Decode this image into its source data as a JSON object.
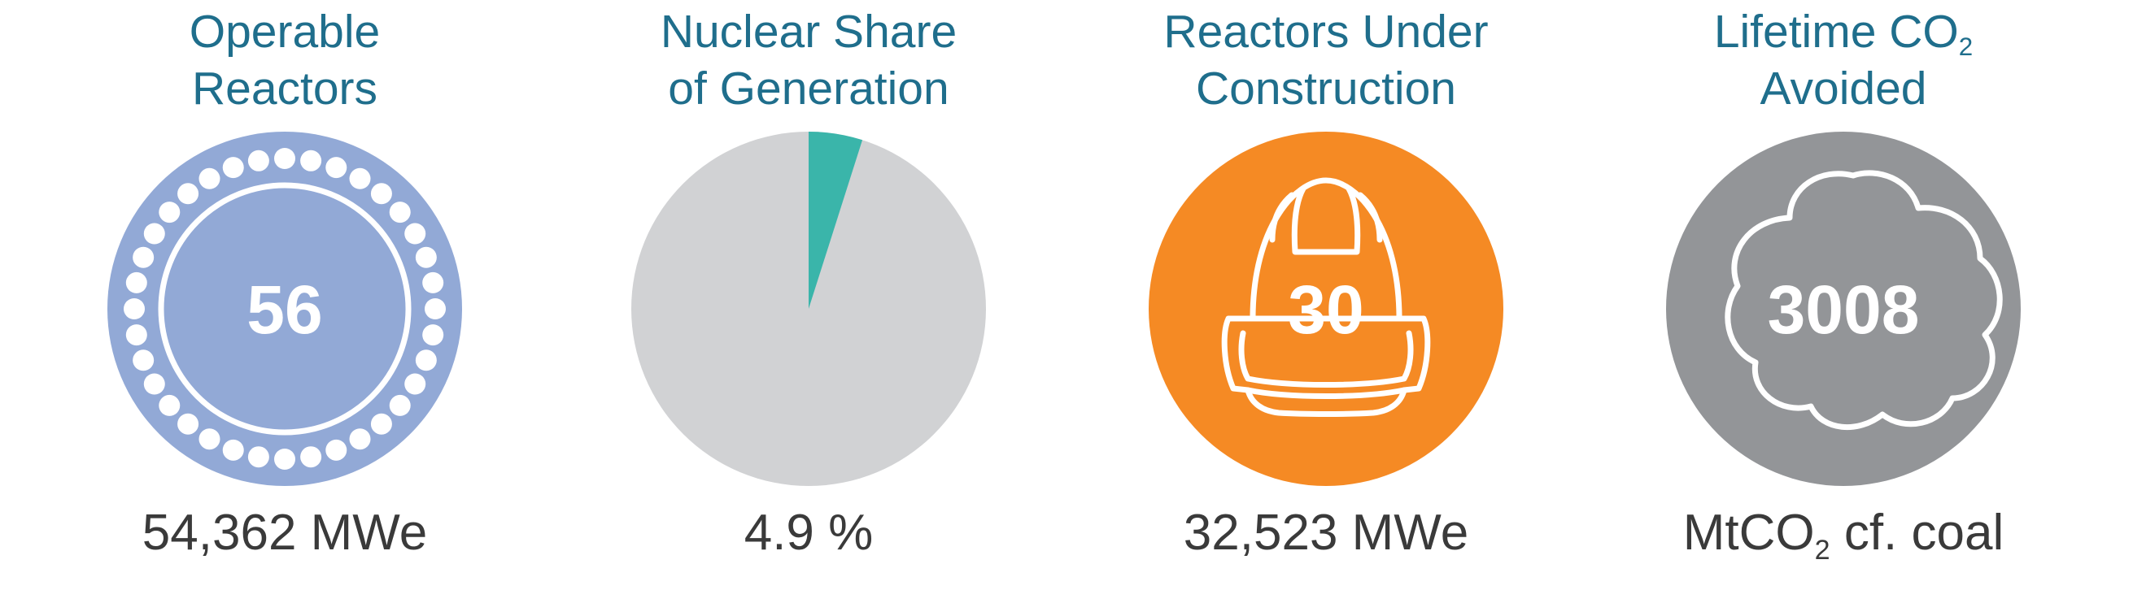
{
  "colors": {
    "title": "#1f6e8c",
    "caption": "#3a3a3a",
    "reactors_circle": "#92a9d6",
    "pie_background": "#d1d2d4",
    "pie_slice": "#3ab5aa",
    "construction_circle": "#f58a24",
    "co2_circle": "#939598"
  },
  "panels": {
    "operable": {
      "title_line1": "Operable",
      "title_line2": "Reactors",
      "value": "56",
      "caption": "54,362 MWe",
      "icon": "reactor-ring-icon"
    },
    "share": {
      "title_line1": "Nuclear Share",
      "title_line2": "of Generation",
      "caption": "4.9 %",
      "percent": 4.9
    },
    "construction": {
      "title_line1": "Reactors Under",
      "title_line2": "Construction",
      "value": "30",
      "caption": "32,523 MWe",
      "icon": "hard-hat-icon"
    },
    "co2": {
      "title_line1_prefix": "Lifetime CO",
      "title_line1_sub": "2",
      "title_line2": "Avoided",
      "value": "3008",
      "caption_prefix": "MtCO",
      "caption_sub": "2",
      "caption_suffix": " cf. coal",
      "icon": "cloud-icon"
    }
  }
}
